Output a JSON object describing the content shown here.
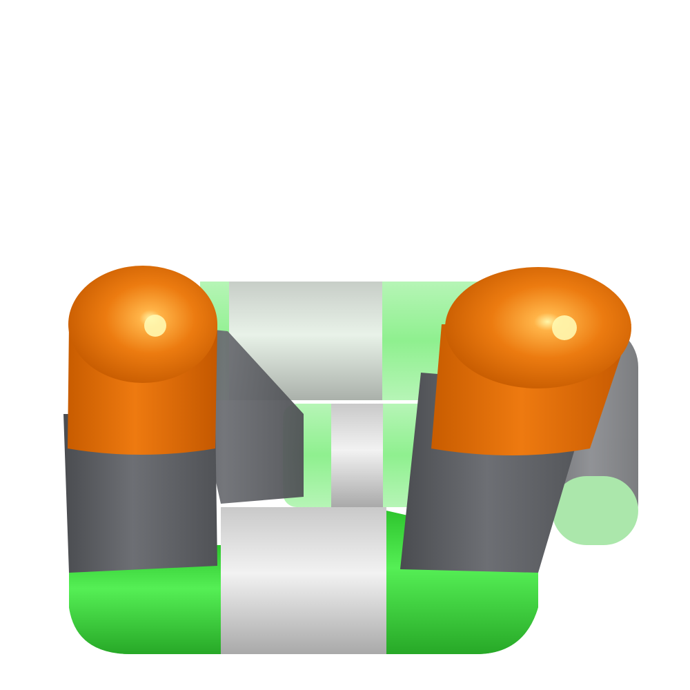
{
  "scene": {
    "type": "molecule-render",
    "style": "licorice bonds",
    "background": "#ffffff"
  },
  "colors": {
    "orange_atom": "#e06f0a",
    "orange_highlight": "#fff3a0",
    "gray_atom": "#5d5f64",
    "green_atom": "#3fdc3f",
    "green_light": "#9ef09e",
    "white_atom": "#e4e4e4"
  },
  "atoms": [
    {
      "element": "orange-atom",
      "label": ""
    },
    {
      "element": "orange-atom",
      "label": ""
    }
  ]
}
